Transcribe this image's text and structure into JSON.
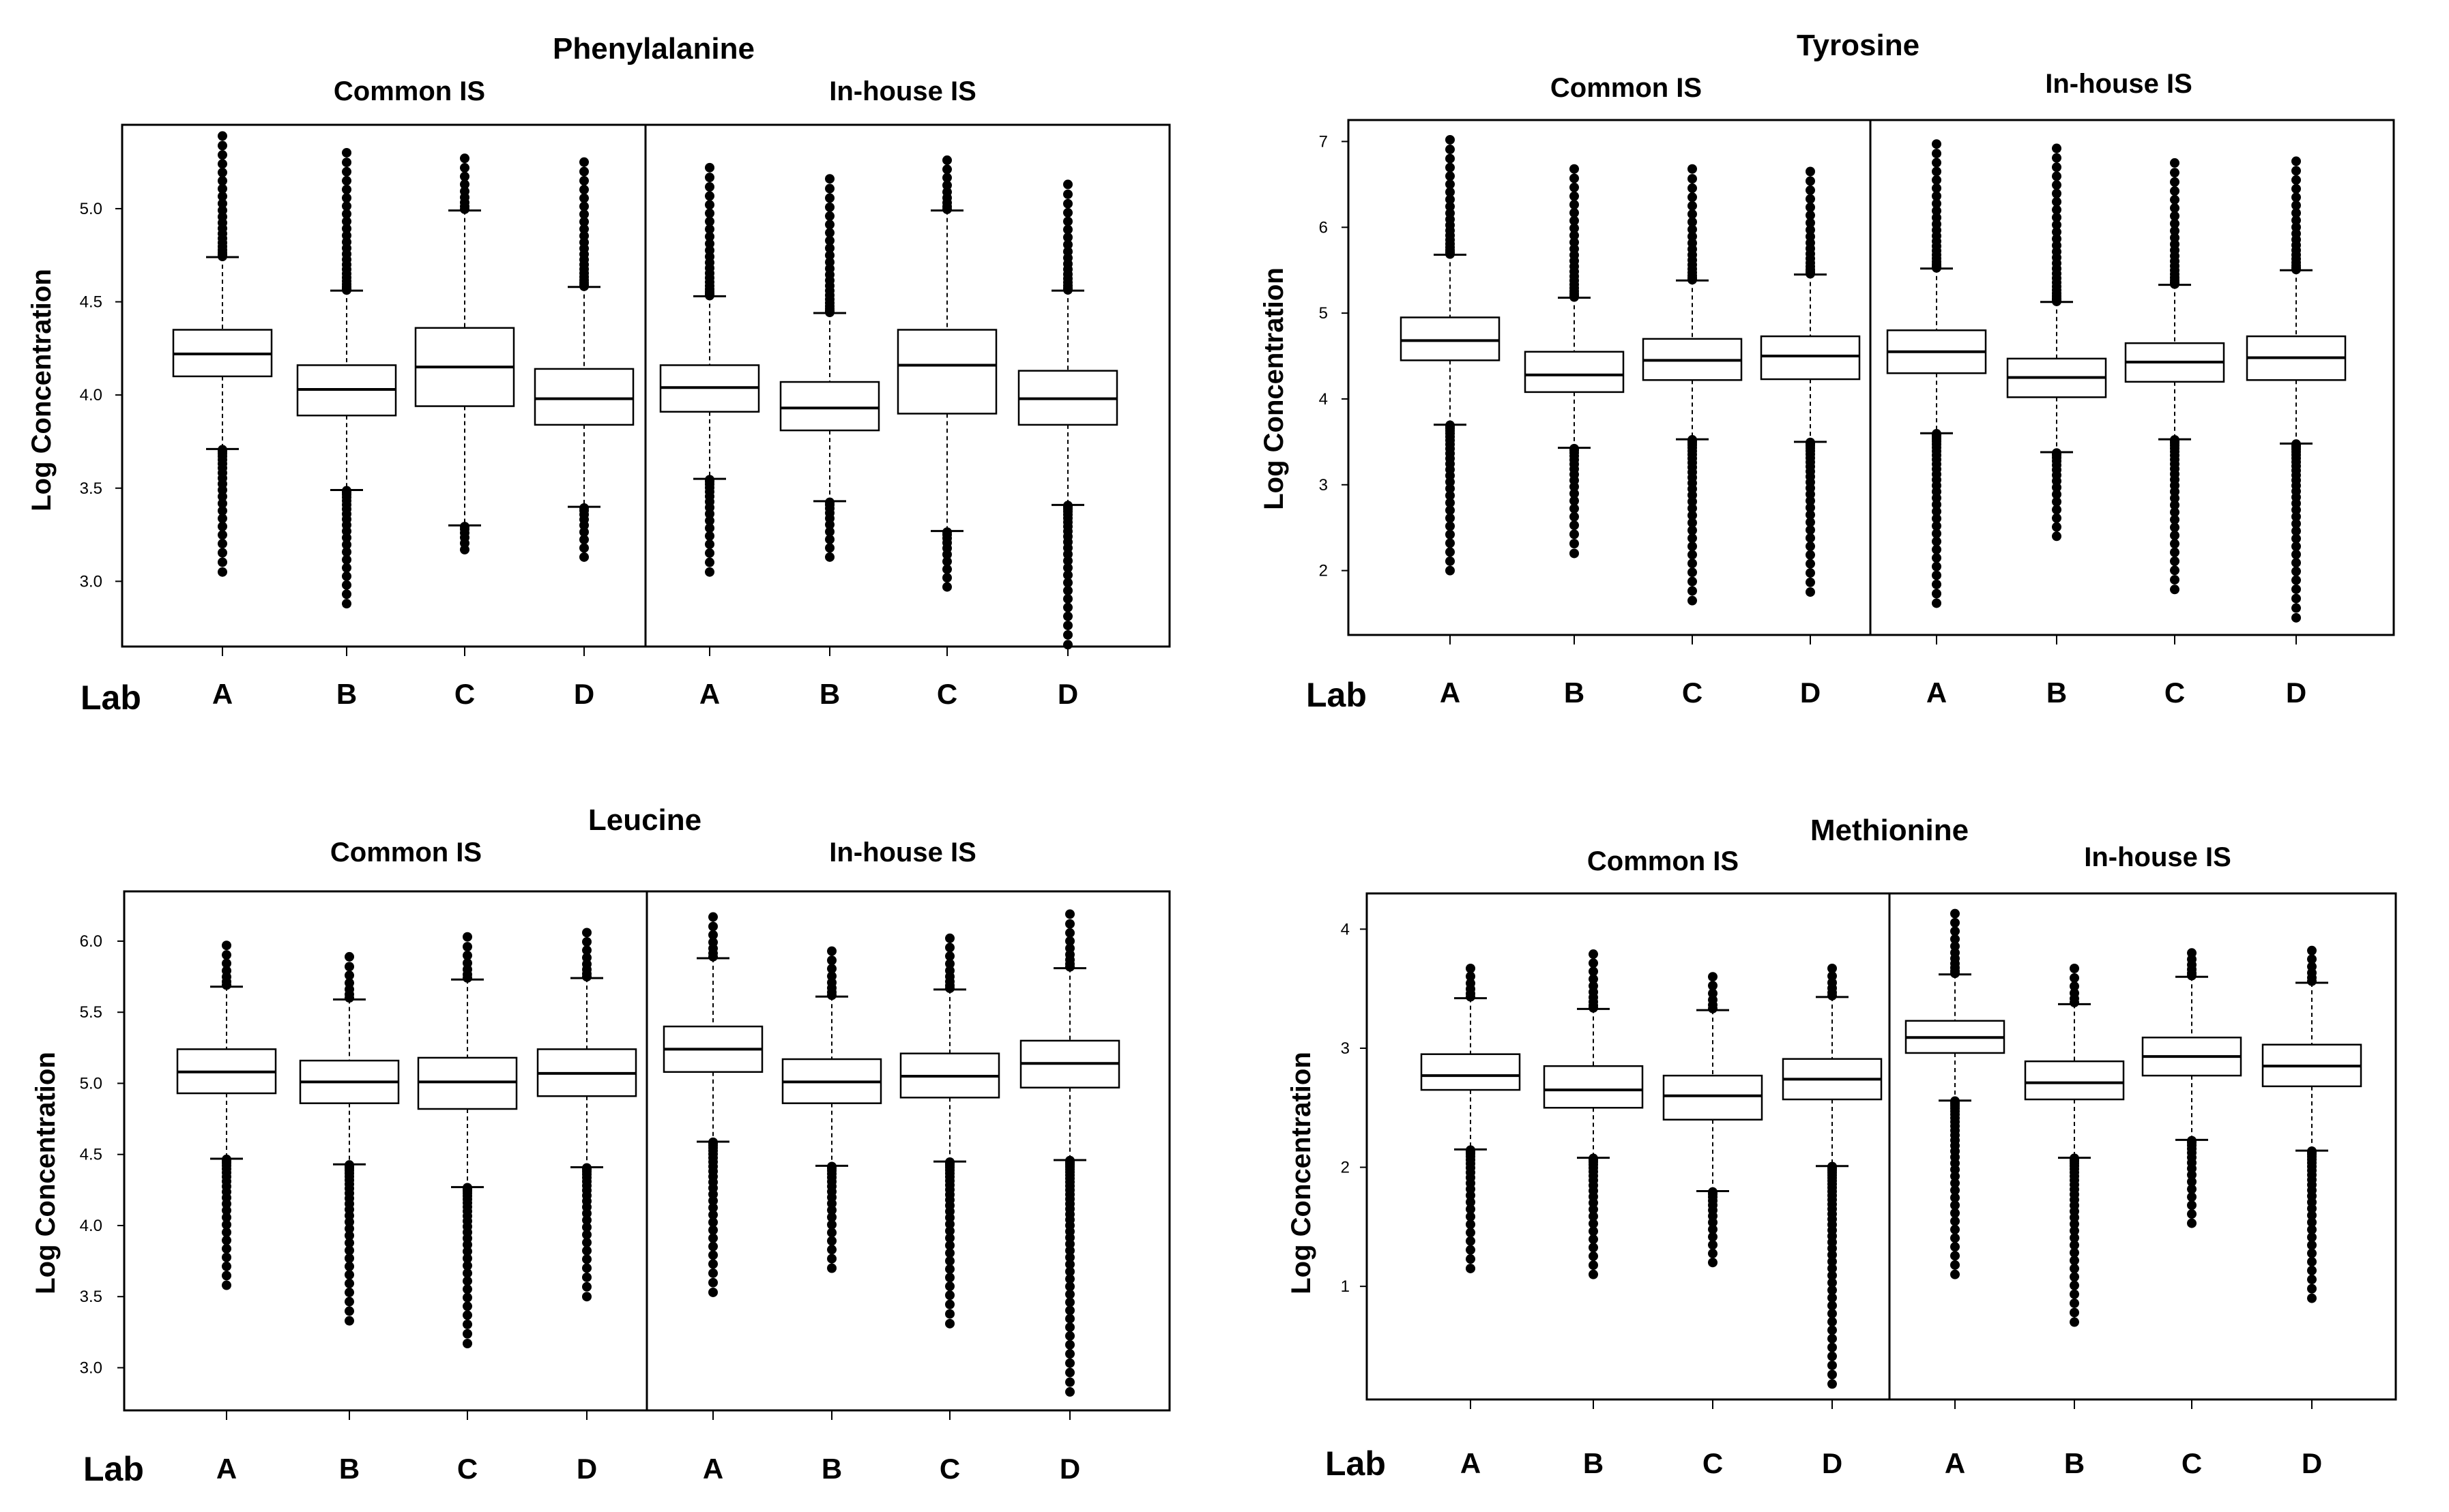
{
  "chart_data": [
    {
      "type": "boxplot",
      "title": "Phenylalanine",
      "ylabel": "Log Concentration",
      "xlabel": "Lab",
      "ylim": [
        2.65,
        5.45
      ],
      "yticks": [
        "3.0",
        "3.5",
        "4.0",
        "4.5",
        "5.0"
      ],
      "groups": [
        {
          "label": "Common IS",
          "categories": [
            "A",
            "B",
            "C",
            "D"
          ],
          "boxes": [
            {
              "q1": 4.1,
              "median": 4.22,
              "q3": 4.35,
              "whisker_low": 3.71,
              "whisker_high": 4.74,
              "outlier_min": 3.05,
              "outlier_max": 5.39
            },
            {
              "q1": 3.89,
              "median": 4.03,
              "q3": 4.16,
              "whisker_low": 3.49,
              "whisker_high": 4.56,
              "outlier_min": 2.88,
              "outlier_max": 5.3
            },
            {
              "q1": 3.94,
              "median": 4.15,
              "q3": 4.36,
              "whisker_low": 3.3,
              "whisker_high": 4.99,
              "outlier_min": 3.17,
              "outlier_max": 5.27
            },
            {
              "q1": 3.84,
              "median": 3.98,
              "q3": 4.14,
              "whisker_low": 3.4,
              "whisker_high": 4.58,
              "outlier_min": 3.13,
              "outlier_max": 5.25
            }
          ]
        },
        {
          "label": "In-house IS",
          "categories": [
            "A",
            "B",
            "C",
            "D"
          ],
          "boxes": [
            {
              "q1": 3.91,
              "median": 4.04,
              "q3": 4.16,
              "whisker_low": 3.55,
              "whisker_high": 4.53,
              "outlier_min": 3.05,
              "outlier_max": 5.22
            },
            {
              "q1": 3.81,
              "median": 3.93,
              "q3": 4.07,
              "whisker_low": 3.43,
              "whisker_high": 4.44,
              "outlier_min": 3.13,
              "outlier_max": 5.16
            },
            {
              "q1": 3.9,
              "median": 4.16,
              "q3": 4.35,
              "whisker_low": 3.27,
              "whisker_high": 4.99,
              "outlier_min": 2.97,
              "outlier_max": 5.26
            },
            {
              "q1": 3.84,
              "median": 3.98,
              "q3": 4.13,
              "whisker_low": 3.41,
              "whisker_high": 4.56,
              "outlier_min": 2.66,
              "outlier_max": 5.13
            }
          ]
        }
      ]
    },
    {
      "type": "boxplot",
      "title": "Tyrosine",
      "ylabel": "Log Concentration",
      "xlabel": "Lab",
      "ylim": [
        1.25,
        7.25
      ],
      "yticks": [
        "2",
        "3",
        "4",
        "5",
        "6",
        "7"
      ],
      "groups": [
        {
          "label": "Common IS",
          "categories": [
            "A",
            "B",
            "C",
            "D"
          ],
          "boxes": [
            {
              "q1": 4.45,
              "median": 4.68,
              "q3": 4.95,
              "whisker_low": 3.7,
              "whisker_high": 5.68,
              "outlier_min": 2.0,
              "outlier_max": 7.02
            },
            {
              "q1": 4.08,
              "median": 4.28,
              "q3": 4.55,
              "whisker_low": 3.43,
              "whisker_high": 5.18,
              "outlier_min": 2.2,
              "outlier_max": 6.68
            },
            {
              "q1": 4.22,
              "median": 4.45,
              "q3": 4.7,
              "whisker_low": 3.53,
              "whisker_high": 5.38,
              "outlier_min": 1.65,
              "outlier_max": 6.68
            },
            {
              "q1": 4.23,
              "median": 4.5,
              "q3": 4.73,
              "whisker_low": 3.5,
              "whisker_high": 5.45,
              "outlier_min": 1.75,
              "outlier_max": 6.65
            }
          ]
        },
        {
          "label": "In-house IS",
          "categories": [
            "A",
            "B",
            "C",
            "D"
          ],
          "boxes": [
            {
              "q1": 4.3,
              "median": 4.55,
              "q3": 4.8,
              "whisker_low": 3.6,
              "whisker_high": 5.52,
              "outlier_min": 1.62,
              "outlier_max": 6.97
            },
            {
              "q1": 4.02,
              "median": 4.25,
              "q3": 4.47,
              "whisker_low": 3.38,
              "whisker_high": 5.13,
              "outlier_min": 2.4,
              "outlier_max": 6.92
            },
            {
              "q1": 4.2,
              "median": 4.43,
              "q3": 4.65,
              "whisker_low": 3.53,
              "whisker_high": 5.33,
              "outlier_min": 1.78,
              "outlier_max": 6.75
            },
            {
              "q1": 4.22,
              "median": 4.48,
              "q3": 4.73,
              "whisker_low": 3.48,
              "whisker_high": 5.5,
              "outlier_min": 1.45,
              "outlier_max": 6.77
            }
          ]
        }
      ]
    },
    {
      "type": "boxplot",
      "title": "Leucine",
      "ylabel": "Log Concentration",
      "xlabel": "Lab",
      "ylim": [
        2.7,
        6.35
      ],
      "yticks": [
        "3.0",
        "3.5",
        "4.0",
        "4.5",
        "5.0",
        "5.5",
        "6.0"
      ],
      "groups": [
        {
          "label": "Common IS",
          "categories": [
            "A",
            "B",
            "C",
            "D"
          ],
          "boxes": [
            {
              "q1": 4.93,
              "median": 5.08,
              "q3": 5.24,
              "whisker_low": 4.47,
              "whisker_high": 5.68,
              "outlier_min": 3.58,
              "outlier_max": 5.97
            },
            {
              "q1": 4.86,
              "median": 5.01,
              "q3": 5.16,
              "whisker_low": 4.43,
              "whisker_high": 5.59,
              "outlier_min": 3.33,
              "outlier_max": 5.89
            },
            {
              "q1": 4.82,
              "median": 5.01,
              "q3": 5.18,
              "whisker_low": 4.27,
              "whisker_high": 5.73,
              "outlier_min": 3.17,
              "outlier_max": 6.03
            },
            {
              "q1": 4.91,
              "median": 5.07,
              "q3": 5.24,
              "whisker_low": 4.41,
              "whisker_high": 5.74,
              "outlier_min": 3.5,
              "outlier_max": 6.06
            }
          ]
        },
        {
          "label": "In-house IS",
          "categories": [
            "A",
            "B",
            "C",
            "D"
          ],
          "boxes": [
            {
              "q1": 5.08,
              "median": 5.24,
              "q3": 5.4,
              "whisker_low": 4.59,
              "whisker_high": 5.88,
              "outlier_min": 3.53,
              "outlier_max": 6.17
            },
            {
              "q1": 4.86,
              "median": 5.01,
              "q3": 5.17,
              "whisker_low": 4.42,
              "whisker_high": 5.61,
              "outlier_min": 3.7,
              "outlier_max": 5.93
            },
            {
              "q1": 4.9,
              "median": 5.05,
              "q3": 5.21,
              "whisker_low": 4.45,
              "whisker_high": 5.66,
              "outlier_min": 3.31,
              "outlier_max": 6.02
            },
            {
              "q1": 4.97,
              "median": 5.14,
              "q3": 5.3,
              "whisker_low": 4.46,
              "whisker_high": 5.81,
              "outlier_min": 2.83,
              "outlier_max": 6.19
            }
          ]
        }
      ]
    },
    {
      "type": "boxplot",
      "title": "Methionine",
      "ylabel": "Log Concentration",
      "xlabel": "Lab",
      "ylim": [
        0.05,
        4.3
      ],
      "yticks": [
        "1",
        "2",
        "3",
        "4"
      ],
      "groups": [
        {
          "label": "Common IS",
          "categories": [
            "A",
            "B",
            "C",
            "D"
          ],
          "boxes": [
            {
              "q1": 2.65,
              "median": 2.77,
              "q3": 2.95,
              "whisker_low": 2.15,
              "whisker_high": 3.42,
              "outlier_min": 1.15,
              "outlier_max": 3.67
            },
            {
              "q1": 2.5,
              "median": 2.65,
              "q3": 2.85,
              "whisker_low": 2.08,
              "whisker_high": 3.33,
              "outlier_min": 1.1,
              "outlier_max": 3.79
            },
            {
              "q1": 2.4,
              "median": 2.6,
              "q3": 2.77,
              "whisker_low": 1.8,
              "whisker_high": 3.32,
              "outlier_min": 1.2,
              "outlier_max": 3.6
            },
            {
              "q1": 2.57,
              "median": 2.74,
              "q3": 2.91,
              "whisker_low": 2.01,
              "whisker_high": 3.43,
              "outlier_min": 0.18,
              "outlier_max": 3.67
            }
          ]
        },
        {
          "label": "In-house IS",
          "categories": [
            "A",
            "B",
            "C",
            "D"
          ],
          "boxes": [
            {
              "q1": 2.96,
              "median": 3.09,
              "q3": 3.23,
              "whisker_low": 2.56,
              "whisker_high": 3.62,
              "outlier_min": 1.1,
              "outlier_max": 4.13
            },
            {
              "q1": 2.57,
              "median": 2.71,
              "q3": 2.89,
              "whisker_low": 2.08,
              "whisker_high": 3.37,
              "outlier_min": 0.7,
              "outlier_max": 3.67
            },
            {
              "q1": 2.77,
              "median": 2.93,
              "q3": 3.09,
              "whisker_low": 2.23,
              "whisker_high": 3.6,
              "outlier_min": 1.53,
              "outlier_max": 3.8
            },
            {
              "q1": 2.68,
              "median": 2.85,
              "q3": 3.03,
              "whisker_low": 2.14,
              "whisker_high": 3.55,
              "outlier_min": 0.9,
              "outlier_max": 3.82
            }
          ]
        }
      ]
    }
  ]
}
